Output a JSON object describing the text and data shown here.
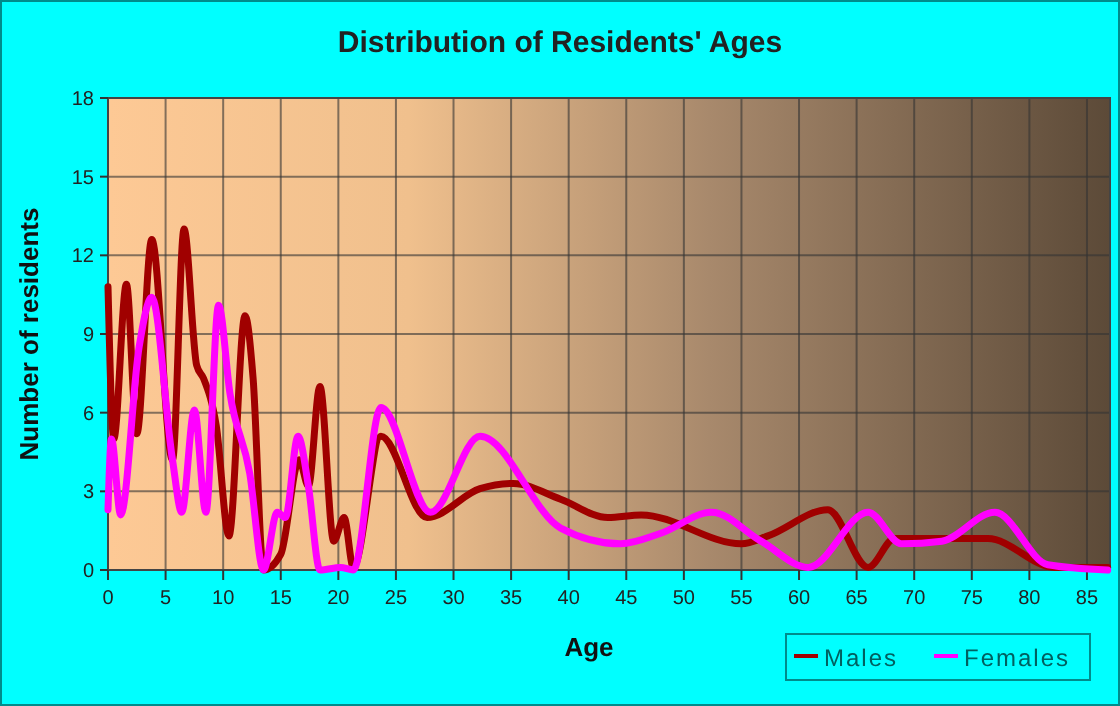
{
  "chart_data": {
    "type": "line",
    "title": "Distribution of Residents' Ages",
    "xlabel": "Age",
    "ylabel": "Number of residents",
    "xlim": [
      0,
      87
    ],
    "xticks": [
      0,
      5,
      10,
      15,
      20,
      25,
      30,
      35,
      40,
      45,
      50,
      55,
      60,
      65,
      70,
      75,
      80,
      85
    ],
    "ylim": [
      0,
      18
    ],
    "yticks": [
      0,
      3,
      6,
      9,
      12,
      15,
      18
    ],
    "grid": true,
    "legend": "bottom right",
    "line_style": "solid",
    "marker": "none",
    "series": [
      {
        "name": "Males",
        "color": "#a00000",
        "x": [
          0,
          0.5,
          1.6,
          2.5,
          3.8,
          5.6,
          6.6,
          7.7,
          8.3,
          9.4,
          10.5,
          11.9,
          12.6,
          13.5,
          15,
          16.6,
          17.4,
          18.4,
          19.6,
          20.5,
          21.3,
          23.7,
          27.7,
          32.3,
          35.2,
          39.3,
          43.4,
          46.3,
          55,
          57.3,
          62.5,
          66,
          68.3,
          76.4,
          82.2,
          86.8
        ],
        "values": [
          10.8,
          5,
          10.9,
          5.2,
          12.6,
          4.2,
          13,
          7.8,
          7.3,
          5.5,
          1.3,
          9.7,
          7.3,
          0,
          0.6,
          4.2,
          3.2,
          7,
          1.1,
          2,
          0.1,
          5.1,
          2,
          3.1,
          3.3,
          2.7,
          2,
          2.1,
          1,
          1.3,
          2.3,
          0.1,
          1.2,
          1.2,
          0.1,
          0.1
        ]
      },
      {
        "name": "Females",
        "color": "#ff00ff",
        "x": [
          0,
          0.3,
          1.1,
          2.7,
          3.8,
          5.6,
          6.4,
          7.5,
          8.5,
          9.6,
          10.6,
          12.3,
          13.5,
          14.7,
          15.4,
          16.5,
          17.4,
          18.4,
          20.2,
          21.3,
          23.7,
          28,
          32.3,
          39.3,
          44.5,
          48,
          52.4,
          56.7,
          60.8,
          66,
          68.9,
          72.4,
          77,
          81.6,
          86.8
        ],
        "values": [
          2.3,
          5,
          2.1,
          8.5,
          10.4,
          4.2,
          2.2,
          6.1,
          2.2,
          10.1,
          6.7,
          3.7,
          0,
          2.2,
          2,
          5.1,
          3.2,
          0,
          0.1,
          0,
          6.2,
          2.2,
          5.1,
          1.6,
          1,
          1.4,
          2.2,
          1.1,
          0.1,
          2.2,
          1,
          1.1,
          2.2,
          0.2,
          0
        ]
      }
    ]
  }
}
